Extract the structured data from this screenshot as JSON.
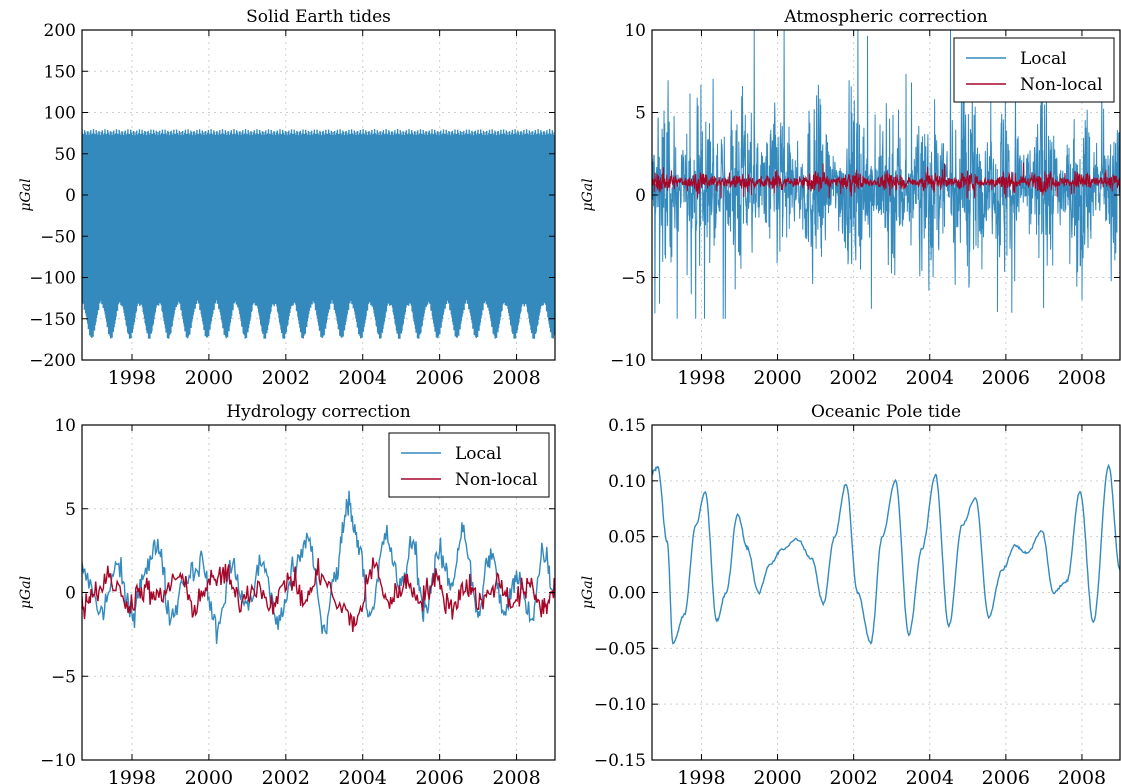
{
  "colors": {
    "local": "#348abd",
    "nonlocal": "#a60628",
    "grid": "#cfcfcf"
  },
  "chart_data": [
    {
      "id": "solid-earth",
      "type": "line",
      "title": "Solid Earth tides",
      "ylabel": "μGal",
      "xlim": [
        1996.7,
        2009.0
      ],
      "ylim": [
        -200,
        200
      ],
      "xticks": [
        1998,
        2000,
        2002,
        2004,
        2006,
        2008
      ],
      "yticks": [
        -200,
        -150,
        -100,
        -50,
        0,
        50,
        100,
        150,
        200
      ],
      "ytick_labels": [
        "−200",
        "−150",
        "−100",
        "−50",
        "0",
        "50",
        "100",
        "150",
        "200"
      ],
      "grid": true,
      "legend": null,
      "series": [
        {
          "name": "",
          "color": "#348abd",
          "style": "dense-oscillation",
          "upper_envelope": 80,
          "lower_envelope_mean": -150,
          "lower_envelope_amp": 25,
          "lower_period_years": 0.5,
          "fill_between": [
            -90,
            55
          ]
        }
      ]
    },
    {
      "id": "atmospheric",
      "type": "line",
      "title": "Atmospheric correction",
      "ylabel": "μGal",
      "xlim": [
        1996.7,
        2009.0
      ],
      "ylim": [
        -10,
        10
      ],
      "xticks": [
        1998,
        2000,
        2002,
        2004,
        2006,
        2008
      ],
      "yticks": [
        -10,
        -5,
        0,
        5,
        10
      ],
      "ytick_labels": [
        "−10",
        "−5",
        "0",
        "5",
        "10"
      ],
      "grid": true,
      "legend": {
        "placement": "top-right",
        "entries": [
          "Local",
          "Non-local"
        ]
      },
      "series": [
        {
          "name": "Local",
          "color": "#348abd",
          "style": "noise",
          "mean": 0.5,
          "spread": 2.6,
          "min": -7.5,
          "max": 10
        },
        {
          "name": "Non-local",
          "color": "#a60628",
          "style": "noise",
          "mean": 0.8,
          "spread": 0.3,
          "min": -0.2,
          "max": 2.0
        }
      ]
    },
    {
      "id": "hydrology",
      "type": "line",
      "title": "Hydrology correction",
      "ylabel": "μGal",
      "xlim": [
        1996.7,
        2009.0
      ],
      "ylim": [
        -10,
        10
      ],
      "xticks": [
        1998,
        2000,
        2002,
        2004,
        2006,
        2008
      ],
      "yticks": [
        -10,
        -5,
        0,
        5,
        10
      ],
      "ytick_labels": [
        "−10",
        "−5",
        "0",
        "5",
        "10"
      ],
      "grid": true,
      "legend": {
        "placement": "top-right",
        "entries": [
          "Local",
          "Non-local"
        ]
      },
      "series": [
        {
          "name": "Local",
          "color": "#348abd",
          "x": [
            1996.7,
            1997.2,
            1997.6,
            1998.0,
            1998.3,
            1998.7,
            1999.0,
            1999.4,
            1999.8,
            2000.2,
            2000.6,
            2001.0,
            2001.4,
            2001.8,
            2002.2,
            2002.6,
            2003.0,
            2003.3,
            2003.6,
            2003.9,
            2004.2,
            2004.6,
            2005.0,
            2005.3,
            2005.6,
            2006.0,
            2006.3,
            2006.6,
            2007.0,
            2007.3,
            2007.7,
            2008.0,
            2008.4,
            2008.7,
            2009.0
          ],
          "values": [
            1.5,
            -1.2,
            1.5,
            -1.3,
            1.2,
            2.8,
            -1.5,
            0.9,
            1.8,
            -2.2,
            1.5,
            -0.8,
            1.8,
            -1.8,
            1.3,
            3.1,
            -2.2,
            1.0,
            5.4,
            3.0,
            -1.5,
            3.3,
            0.3,
            3.0,
            -1.0,
            2.2,
            0.5,
            3.8,
            -1.3,
            2.3,
            -1.2,
            0.8,
            -1.3,
            2.5,
            0.0
          ]
        },
        {
          "name": "Non-local",
          "color": "#a60628",
          "x": [
            1996.7,
            1997.0,
            1997.4,
            1997.9,
            1998.3,
            1998.7,
            1999.2,
            1999.6,
            2000.0,
            2000.4,
            2000.8,
            2001.2,
            2001.7,
            2002.1,
            2002.5,
            2002.9,
            2003.4,
            2003.8,
            2004.3,
            2004.7,
            2005.1,
            2005.5,
            2005.9,
            2006.3,
            2006.7,
            2007.1,
            2007.5,
            2007.9,
            2008.3,
            2008.7,
            2009.0
          ],
          "values": [
            -0.8,
            0.0,
            0.8,
            -0.6,
            0.2,
            -0.4,
            1.0,
            -0.8,
            0.5,
            1.1,
            -0.5,
            0.4,
            -0.6,
            0.9,
            -0.5,
            1.2,
            -0.9,
            -1.7,
            1.5,
            -0.6,
            0.6,
            -0.3,
            0.7,
            -0.9,
            0.5,
            -0.6,
            0.6,
            -0.5,
            0.3,
            -0.9,
            0.3
          ]
        }
      ]
    },
    {
      "id": "pole-tide",
      "type": "line",
      "title": "Oceanic Pole tide",
      "ylabel": "μGal",
      "xlim": [
        1996.7,
        2009.0
      ],
      "ylim": [
        -0.15,
        0.15
      ],
      "xticks": [
        1998,
        2000,
        2002,
        2004,
        2006,
        2008
      ],
      "yticks": [
        -0.15,
        -0.1,
        -0.05,
        0.0,
        0.05,
        0.1,
        0.15
      ],
      "ytick_labels": [
        "−0.15",
        "−0.10",
        "−0.05",
        "0.00",
        "0.05",
        "0.10",
        "0.15"
      ],
      "grid": true,
      "legend": null,
      "series": [
        {
          "name": "",
          "color": "#348abd",
          "x": [
            1996.7,
            1996.85,
            1997.1,
            1997.25,
            1997.55,
            1997.85,
            1998.1,
            1998.4,
            1998.65,
            1998.95,
            1999.2,
            1999.5,
            1999.8,
            2000.1,
            2000.5,
            2000.9,
            2001.2,
            2001.5,
            2001.8,
            2002.1,
            2002.45,
            2002.75,
            2003.1,
            2003.45,
            2003.8,
            2004.15,
            2004.5,
            2004.85,
            2005.2,
            2005.55,
            2005.9,
            2006.25,
            2006.55,
            2006.95,
            2007.25,
            2007.6,
            2007.95,
            2008.3,
            2008.7,
            2009.0
          ],
          "values": [
            0.108,
            0.112,
            0.045,
            -0.045,
            -0.02,
            0.06,
            0.09,
            -0.025,
            0.0,
            0.07,
            0.04,
            0.0,
            0.025,
            0.038,
            0.048,
            0.03,
            -0.01,
            0.05,
            0.097,
            0.0,
            -0.045,
            0.05,
            0.1,
            -0.038,
            0.04,
            0.105,
            -0.03,
            0.06,
            0.085,
            -0.022,
            0.02,
            0.042,
            0.035,
            0.055,
            0.0,
            0.01,
            0.09,
            -0.027,
            0.113,
            0.02
          ]
        }
      ]
    }
  ]
}
